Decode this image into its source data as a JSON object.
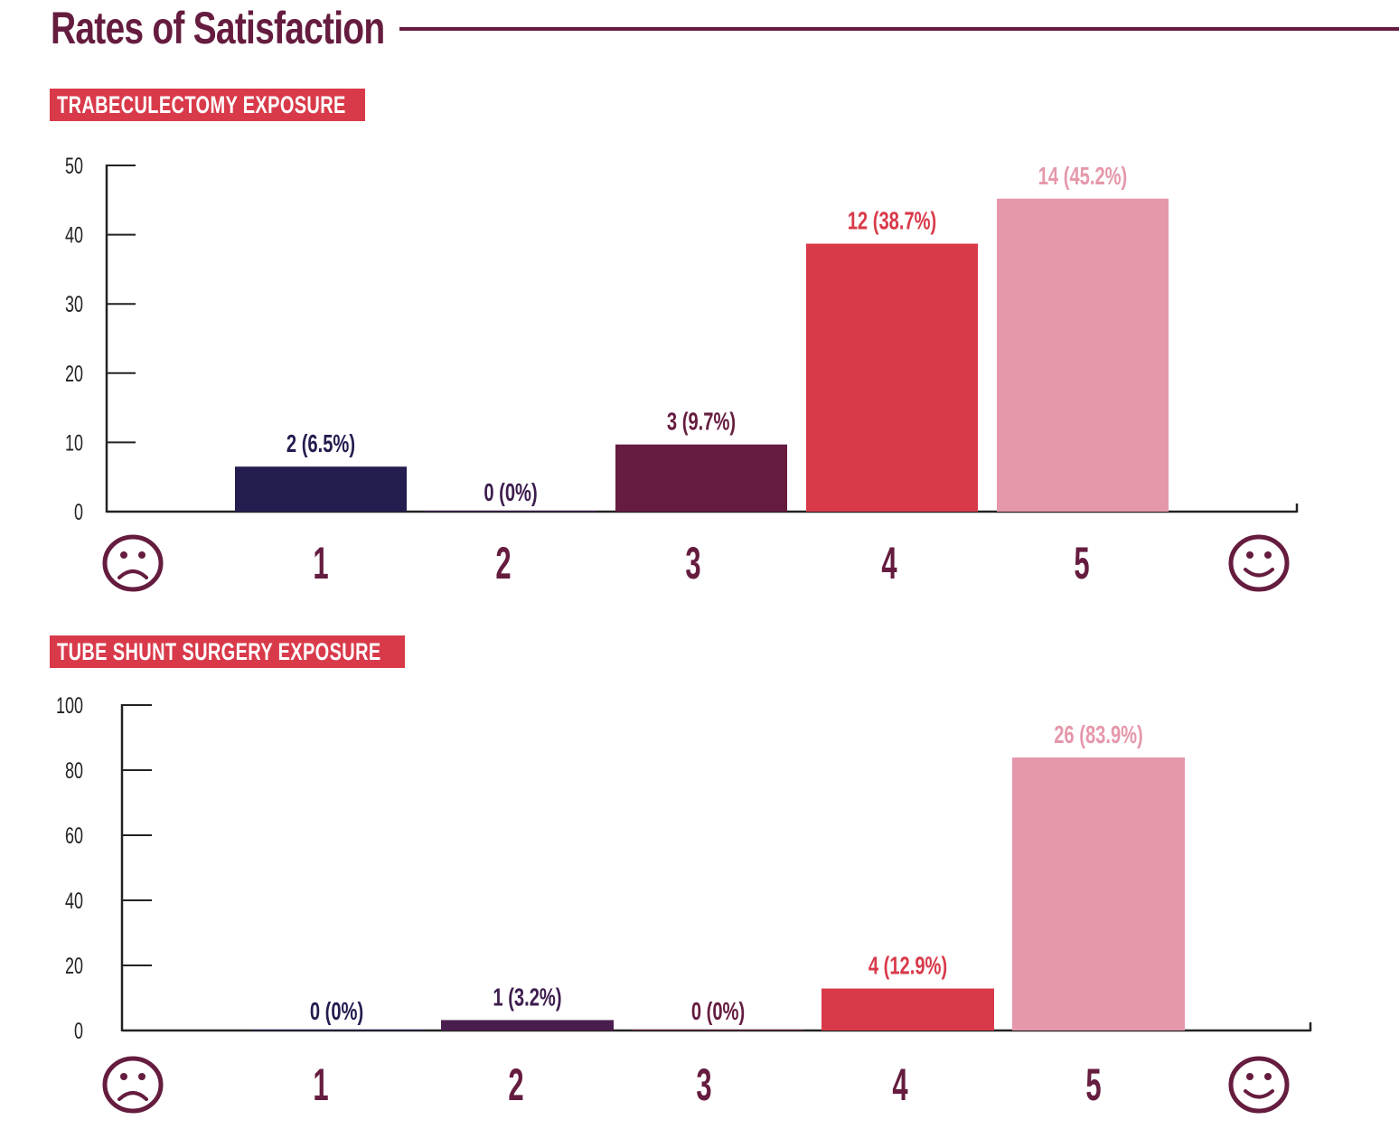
{
  "page": {
    "title": "Rates of Satisfaction",
    "accent_color": "#651c3f",
    "badge_color": "#d93a4a"
  },
  "faces": {
    "low": "sad-face",
    "high": "happy-face"
  },
  "chart_data": [
    {
      "type": "bar",
      "title": "TRABECULECTOMY EXPOSURE",
      "categories": [
        "1",
        "2",
        "3",
        "4",
        "5"
      ],
      "values": [
        6.5,
        0,
        9.7,
        38.7,
        45.2
      ],
      "counts": [
        2,
        0,
        3,
        12,
        14
      ],
      "data_labels": [
        "2 (6.5%)",
        "0 (0%)",
        "3 (9.7%)",
        "12 (38.7%)",
        "14 (45.2%)"
      ],
      "colors": [
        "#241d4f",
        "#3d1d4f",
        "#651c3f",
        "#d93a4a",
        "#e598aa"
      ],
      "xlabel": "",
      "ylabel": "",
      "ylim": [
        0,
        50
      ],
      "yticks": [
        0,
        10,
        20,
        30,
        40,
        50
      ],
      "ytick_labels": [
        "0",
        "10",
        "20",
        "30",
        "40",
        "50"
      ],
      "grid": false,
      "legend": "none"
    },
    {
      "type": "bar",
      "title": "TUBE SHUNT SURGERY EXPOSURE",
      "categories": [
        "1",
        "2",
        "3",
        "4",
        "5"
      ],
      "values": [
        0,
        3.2,
        0,
        12.9,
        83.9
      ],
      "counts": [
        0,
        1,
        0,
        4,
        26
      ],
      "data_labels": [
        "0 (0%)",
        "1 (3.2%)",
        "0 (0%)",
        "4 (12.9%)",
        "26 (83.9%)"
      ],
      "colors": [
        "#241d4f",
        "#4a1d4f",
        "#651c3f",
        "#d93a4a",
        "#e598aa"
      ],
      "xlabel": "",
      "ylabel": "",
      "ylim": [
        0,
        100
      ],
      "yticks": [
        0,
        20,
        40,
        60,
        80,
        100
      ],
      "ytick_labels": [
        "0",
        "20",
        "40",
        "60",
        "80",
        "100"
      ],
      "grid": false,
      "legend": "none"
    }
  ]
}
